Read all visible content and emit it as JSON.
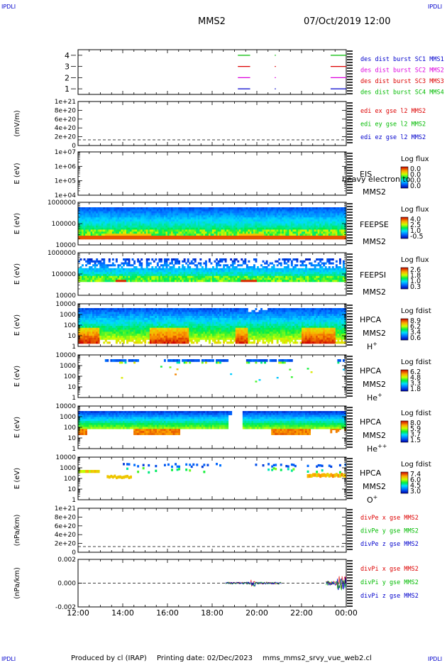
{
  "header": {
    "corner_left": "IPDLI",
    "corner_right": "IPDLI",
    "spacecraft": "MMS2",
    "datetime": "07/Oct/2019 12:00"
  },
  "footer": {
    "produced_by": "Produced by cl (IRAP)",
    "printing_date": "Printing date: 02/Dec/2023",
    "filename": "mms_mms2_srvy_vue_web2.cl",
    "corner_left": "IPDLI",
    "corner_right": "IPDLI"
  },
  "time_axis": {
    "start_hour": 12,
    "end_hour": 24,
    "tick_labels": [
      "12:00",
      "14:00",
      "16:00",
      "18:00",
      "20:00",
      "22:00",
      "00:00"
    ]
  },
  "colors": {
    "red": "#dd0000",
    "green": "#00bb00",
    "blue": "#0000cc",
    "magenta": "#dd00dd",
    "orange": "#ff5500"
  },
  "chart_data": [
    {
      "id": "burst",
      "type": "line",
      "ylim": [
        0.5,
        4.5
      ],
      "y_ticks": [
        "1",
        "2",
        "3",
        "4"
      ],
      "legend": [
        {
          "text": "des dist burst SC1 MMS1",
          "color": "#0000cc"
        },
        {
          "text": "des dist burst SC2 MMS2",
          "color": "#dd00dd"
        },
        {
          "text": "des dist burst SC3 MMS3",
          "color": "#dd0000"
        },
        {
          "text": "des dist burst SC4 MMS4",
          "color": "#00bb00"
        }
      ],
      "series": [
        {
          "level": 4,
          "color": "#00bb00",
          "segments": [
            [
              19.15,
              19.7
            ],
            [
              20.8,
              20.85
            ],
            [
              23.3,
              24.0
            ]
          ]
        },
        {
          "level": 3,
          "color": "#dd0000",
          "segments": [
            [
              19.15,
              19.7
            ],
            [
              20.8,
              20.85
            ],
            [
              23.3,
              24.0
            ]
          ]
        },
        {
          "level": 2,
          "color": "#dd00dd",
          "segments": [
            [
              19.15,
              19.7
            ],
            [
              20.8,
              20.85
            ],
            [
              23.3,
              24.0
            ]
          ]
        },
        {
          "level": 1,
          "color": "#0000cc",
          "segments": [
            [
              19.15,
              19.7
            ],
            [
              20.8,
              20.85
            ],
            [
              23.3,
              24.0
            ]
          ]
        }
      ]
    },
    {
      "id": "edi",
      "type": "line",
      "ylabel": "(mV/m)",
      "y_ticks": [
        "1e+21",
        "8e+20",
        "6e+20",
        "4e+20",
        "2e+20",
        "0"
      ],
      "legend": [
        {
          "text": "edi ex gse l2 MMS2",
          "color": "#dd0000"
        },
        {
          "text": "edi ey gse l2 MMS2",
          "color": "#00bb00"
        },
        {
          "text": "edi ez gse l2 MMS2",
          "color": "#0000cc"
        }
      ]
    },
    {
      "id": "eis",
      "type": "heatmap",
      "ylabel": "E (eV)",
      "y_ticks": [
        "1e+07",
        "1e+06",
        "1e+05",
        "1e+04"
      ],
      "label_top": "EIS",
      "label_overlap": "heavy electron to",
      "label_bottom": "MMS2",
      "colorbar_title": "Log flux",
      "colorbar_ticks": [
        "0.0",
        "0.0",
        "0.0",
        "0.0"
      ]
    },
    {
      "id": "feepse",
      "type": "heatmap",
      "ylabel": "E (eV)",
      "y_ticks": [
        "1000000",
        "100000",
        "10000"
      ],
      "label_top": "FEEPSE",
      "label_bottom": "MMS2",
      "colorbar_title": "Log flux",
      "colorbar_ticks": [
        "4.0",
        "2.5",
        "1.0",
        "-0.5"
      ]
    },
    {
      "id": "feepsi",
      "type": "heatmap",
      "ylabel": "E (eV)",
      "y_ticks": [
        "1000000",
        "100000",
        "10000"
      ],
      "label_top": "FEEPSI",
      "label_bottom": "MMS2",
      "colorbar_title": "Log flux",
      "colorbar_ticks": [
        "2.6",
        "1.8",
        "1.0",
        "0.3"
      ]
    },
    {
      "id": "hpca_h",
      "type": "heatmap",
      "ylabel": "E (eV)",
      "y_ticks": [
        "10000",
        "1000",
        "100",
        "10",
        "1"
      ],
      "label_top": "HPCA",
      "label_mid": "MMS2",
      "species": "H",
      "species_sup": "+",
      "colorbar_title": "Log fdist",
      "colorbar_ticks": [
        "8.9",
        "6.2",
        "3.4",
        "0.6"
      ]
    },
    {
      "id": "hpca_he",
      "type": "heatmap",
      "ylabel": "E (eV)",
      "y_ticks": [
        "10000",
        "1000",
        "100",
        "10",
        "1"
      ],
      "label_top": "HPCA",
      "label_mid": "MMS2",
      "species": "He",
      "species_sup": "+",
      "colorbar_title": "Log fdist",
      "colorbar_ticks": [
        "6.2",
        "4.8",
        "3.3",
        "1.8"
      ]
    },
    {
      "id": "hpca_hepp",
      "type": "heatmap",
      "ylabel": "E (eV)",
      "y_ticks": [
        "10000",
        "1000",
        "100",
        "10",
        "1"
      ],
      "label_top": "HPCA",
      "label_mid": "MMS2",
      "species": "He",
      "species_sup": "++",
      "colorbar_title": "Log fdist",
      "colorbar_ticks": [
        "8.0",
        "5.9",
        "3.7",
        "1.5"
      ]
    },
    {
      "id": "hpca_o",
      "type": "heatmap",
      "ylabel": "E (eV)",
      "y_ticks": [
        "10000",
        "1000",
        "100",
        "10",
        "1"
      ],
      "label_top": "HPCA",
      "label_mid": "MMS2",
      "species": "O",
      "species_sup": "+",
      "colorbar_title": "Log fdist",
      "colorbar_ticks": [
        "7.4",
        "6.0",
        "4.5",
        "3.0"
      ]
    },
    {
      "id": "divpe",
      "type": "line",
      "ylabel": "(nPa/km)",
      "y_ticks": [
        "1e+21",
        "8e+20",
        "6e+20",
        "4e+20",
        "2e+20",
        "0"
      ],
      "legend": [
        {
          "text": "divPe x gse MMS2",
          "color": "#dd0000"
        },
        {
          "text": "divPe y gse MMS2",
          "color": "#00bb00"
        },
        {
          "text": "divPe z gse MMS2",
          "color": "#0000cc"
        }
      ]
    },
    {
      "id": "divpi",
      "type": "line",
      "ylabel": "(nPa/km)",
      "y_ticks": [
        "0.002",
        "0.000",
        "-0.002"
      ],
      "ylim": [
        -0.003,
        0.003
      ],
      "legend": [
        {
          "text": "divPi x gse MMS2",
          "color": "#dd0000"
        },
        {
          "text": "divPi y gse MMS2",
          "color": "#00bb00"
        },
        {
          "text": "divPi z gse MMS2",
          "color": "#0000cc"
        }
      ],
      "activity_intervals": [
        [
          18.6,
          21.1
        ],
        [
          23.1,
          24.0
        ]
      ]
    }
  ]
}
